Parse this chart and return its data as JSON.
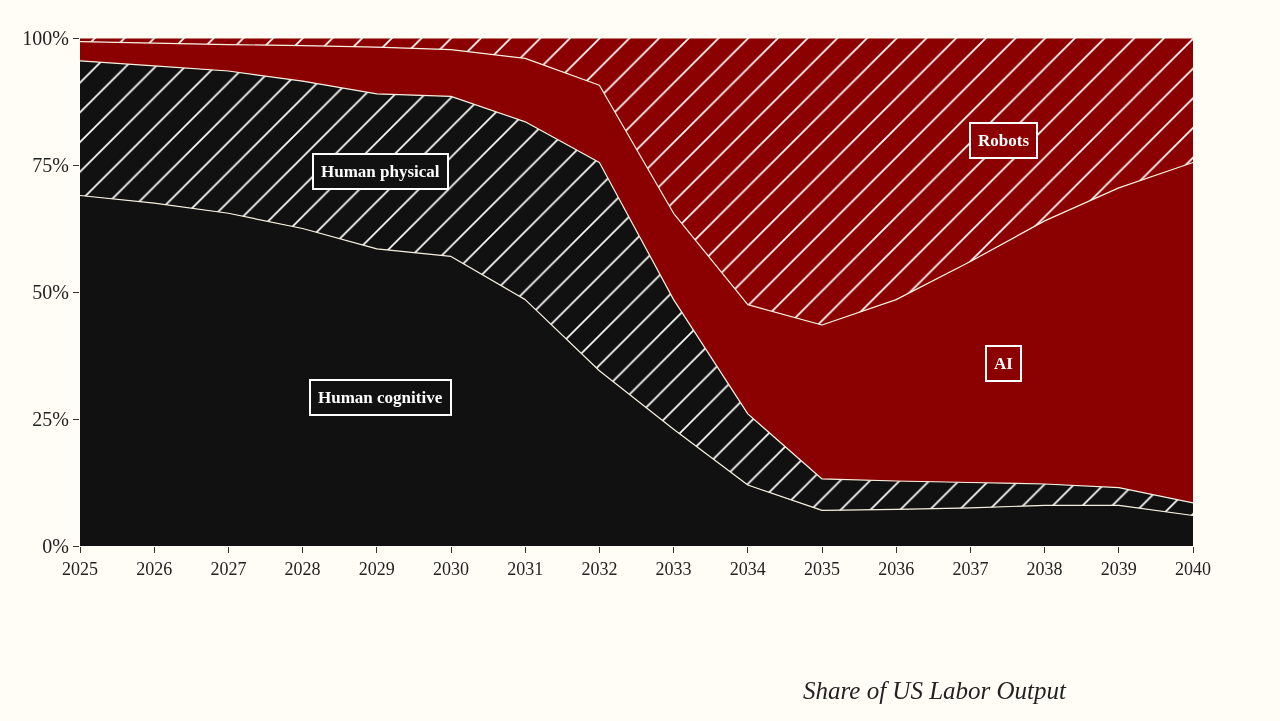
{
  "chart_data": {
    "type": "area",
    "stacked": true,
    "x": [
      2025,
      2026,
      2027,
      2028,
      2029,
      2030,
      2031,
      2032,
      2033,
      2034,
      2035,
      2036,
      2037,
      2038,
      2039,
      2040
    ],
    "xlim": [
      2025,
      2040
    ],
    "xticks": [
      2025,
      2026,
      2027,
      2028,
      2029,
      2030,
      2031,
      2032,
      2033,
      2034,
      2035,
      2036,
      2037,
      2038,
      2039,
      2040
    ],
    "ylim": [
      0,
      100
    ],
    "yticks": [
      {
        "value": 0,
        "label": "0%"
      },
      {
        "value": 25,
        "label": "25%"
      },
      {
        "value": 50,
        "label": "50%"
      },
      {
        "value": 75,
        "label": "75%"
      },
      {
        "value": 100,
        "label": "100%"
      }
    ],
    "legend": false,
    "series": [
      {
        "name": "Human cognitive",
        "color": "#111111",
        "values": [
          69,
          67.5,
          65.5,
          62.5,
          58.5,
          57,
          48.5,
          34.5,
          23,
          12,
          7,
          7.2,
          7.5,
          8,
          8,
          6
        ]
      },
      {
        "name": "Human physical",
        "color": "#111111",
        "values": [
          26.5,
          27,
          28,
          29,
          30.5,
          31.5,
          35,
          41,
          25.5,
          14,
          6.2,
          5.6,
          5,
          4.2,
          3.5,
          2.5
        ]
      },
      {
        "name": "AI",
        "color": "#8b0000",
        "values": [
          3.8,
          4.5,
          5.2,
          7,
          9.2,
          9.2,
          12.5,
          15.2,
          17,
          21.5,
          30.3,
          35.7,
          43.5,
          51.8,
          59,
          67
        ]
      },
      {
        "name": "Robots",
        "color": "#8b0000",
        "values": [
          0.7,
          1,
          1.3,
          1.5,
          1.8,
          2.3,
          4,
          9.3,
          34.5,
          52.5,
          56.5,
          51.5,
          44,
          36,
          29.5,
          24.5
        ]
      }
    ],
    "annotations": [
      "Share of US Labor Output"
    ]
  }
}
